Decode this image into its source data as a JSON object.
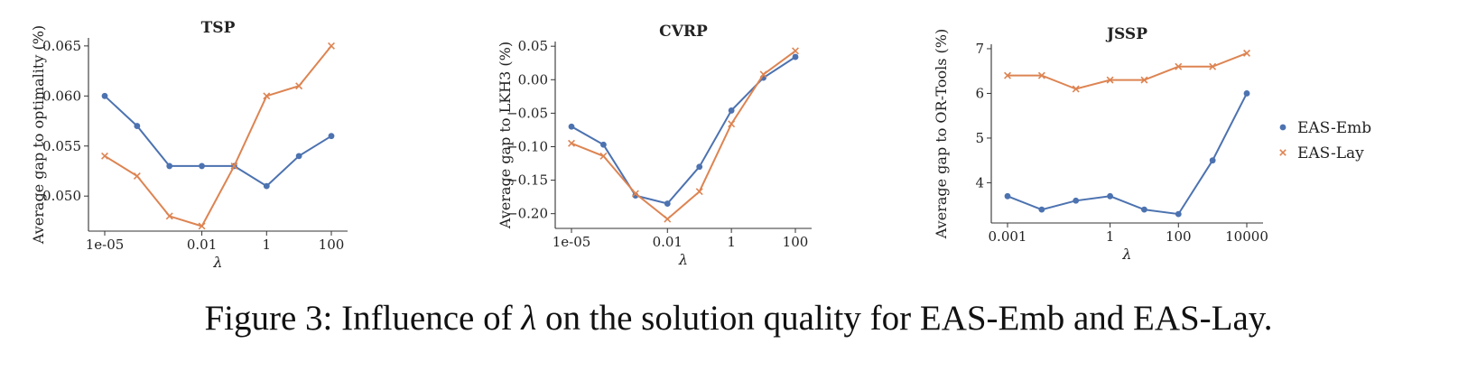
{
  "caption": {
    "prefix": "Figure 3: Influence of ",
    "symbol": "λ",
    "suffix": " on the solution quality for EAS-Emb and EAS-Lay."
  },
  "legend": {
    "placement": "right",
    "entries": [
      "EAS-Emb",
      "EAS-Lay"
    ]
  },
  "colors": {
    "EAS-Emb": "#4c72b0",
    "EAS-Lay": "#dd8452"
  },
  "chart_data": [
    {
      "type": "line",
      "title": "TSP",
      "xlabel": "λ",
      "ylabel": "Average gap to optimality (%)",
      "x_scale": "log",
      "x": [
        1e-05,
        0.0001,
        0.001,
        0.01,
        0.1,
        1,
        10,
        100
      ],
      "xticks": [
        1e-05,
        0.01,
        1,
        100
      ],
      "xtick_labels": [
        "1e-05",
        "0.01",
        "1",
        "100"
      ],
      "ylim": [
        0.0465,
        0.0658
      ],
      "yticks": [
        0.05,
        0.055,
        0.06,
        0.065
      ],
      "ytick_labels": [
        "0.050",
        "0.055",
        "0.060",
        "0.065"
      ],
      "series": [
        {
          "name": "EAS-Emb",
          "marker": "circle",
          "values": [
            0.06,
            0.057,
            0.053,
            0.053,
            0.053,
            0.051,
            0.054,
            0.056
          ]
        },
        {
          "name": "EAS-Lay",
          "marker": "x",
          "values": [
            0.054,
            0.052,
            0.048,
            0.047,
            0.053,
            0.06,
            0.061,
            0.065
          ]
        }
      ]
    },
    {
      "type": "line",
      "title": "CVRP",
      "xlabel": "λ",
      "ylabel": "Average gap to LKH3 (%)",
      "x_scale": "log",
      "x": [
        1e-05,
        0.0001,
        0.001,
        0.01,
        0.1,
        1,
        10,
        100
      ],
      "xticks": [
        1e-05,
        0.01,
        1,
        100
      ],
      "xtick_labels": [
        "1e-05",
        "0.01",
        "1",
        "100"
      ],
      "ylim": [
        -0.222,
        0.057
      ],
      "yticks": [
        -0.2,
        -0.15,
        -0.1,
        -0.05,
        0.0,
        0.05
      ],
      "ytick_labels": [
        "−0.20",
        "−0.15",
        "−0.10",
        "−0.05",
        "0.00",
        "0.05"
      ],
      "series": [
        {
          "name": "EAS-Emb",
          "marker": "circle",
          "values": [
            -0.07,
            -0.097,
            -0.173,
            -0.185,
            -0.13,
            -0.046,
            0.003,
            0.034
          ]
        },
        {
          "name": "EAS-Lay",
          "marker": "x",
          "values": [
            -0.095,
            -0.114,
            -0.17,
            -0.208,
            -0.167,
            -0.066,
            0.008,
            0.043
          ]
        }
      ]
    },
    {
      "type": "line",
      "title": "JSSP",
      "xlabel": "λ",
      "ylabel": "Average gap to OR-Tools (%)",
      "x_scale": "log",
      "x": [
        0.001,
        0.01,
        0.1,
        1,
        10,
        100,
        1000,
        10000
      ],
      "xticks": [
        0.001,
        1,
        100,
        10000
      ],
      "xtick_labels": [
        "0.001",
        "1",
        "100",
        "10000"
      ],
      "ylim": [
        3.1,
        7.1
      ],
      "yticks": [
        4,
        5,
        6,
        7
      ],
      "ytick_labels": [
        "4",
        "5",
        "6",
        "7"
      ],
      "series": [
        {
          "name": "EAS-Emb",
          "marker": "circle",
          "values": [
            3.7,
            3.4,
            3.6,
            3.7,
            3.4,
            3.3,
            4.5,
            6.0
          ]
        },
        {
          "name": "EAS-Lay",
          "marker": "x",
          "values": [
            6.4,
            6.4,
            6.1,
            6.3,
            6.3,
            6.6,
            6.6,
            6.9
          ]
        }
      ]
    }
  ]
}
